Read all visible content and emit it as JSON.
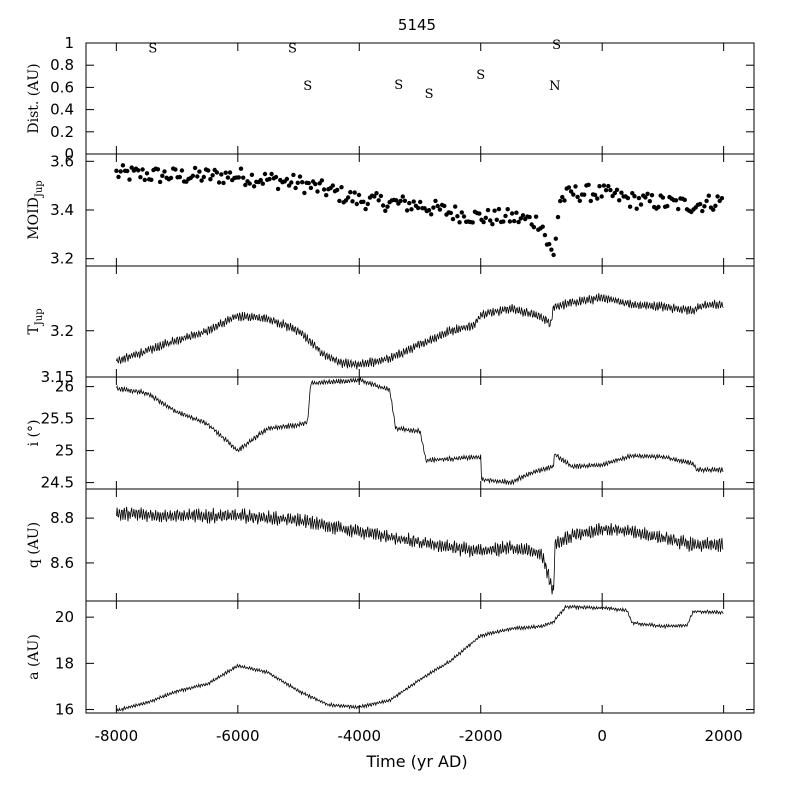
{
  "title": "5145",
  "xlabel": "Time (yr AD)",
  "xticks": [
    "-8000",
    "-6000",
    "-4000",
    "-2000",
    "0",
    "2000"
  ],
  "chart_data": [
    {
      "id": "dist",
      "type": "scatter",
      "ylabel": "Dist. (AU)",
      "xlim": [
        -8500,
        2500
      ],
      "ylim": [
        0,
        1
      ],
      "yticks": [
        "0",
        "0.2",
        "0.4",
        "0.6",
        "0.8",
        "1"
      ],
      "encounters": [
        {
          "x": -7400,
          "y": 0.96,
          "label": "S"
        },
        {
          "x": -5100,
          "y": 0.96,
          "label": "S"
        },
        {
          "x": -4850,
          "y": 0.62,
          "label": "S"
        },
        {
          "x": -3350,
          "y": 0.63,
          "label": "S"
        },
        {
          "x": -2850,
          "y": 0.55,
          "label": "S"
        },
        {
          "x": -2000,
          "y": 0.72,
          "label": "S"
        },
        {
          "x": -750,
          "y": 0.99,
          "label": "S"
        },
        {
          "x": -780,
          "y": 0.62,
          "label": "N"
        }
      ]
    },
    {
      "id": "moid",
      "type": "scatter",
      "ylabel_main": "MOID",
      "ylabel_sub": "Jup",
      "xlim": [
        -8500,
        2500
      ],
      "ylim": [
        3.17,
        3.63
      ],
      "yticks": [
        "3.2",
        "3.4",
        "3.6"
      ]
    },
    {
      "id": "tjup",
      "type": "line",
      "ylabel_main": "T",
      "ylabel_sub": "Jup",
      "xlim": [
        -8500,
        2500
      ],
      "ylim": [
        3.15,
        3.27
      ],
      "yticks": [
        "3.15",
        "3.2"
      ]
    },
    {
      "id": "incl",
      "type": "line",
      "ylabel": "i (°)",
      "xlim": [
        -8500,
        2500
      ],
      "ylim": [
        24.4,
        26.15
      ],
      "yticks": [
        "24.5",
        "25",
        "25.5",
        "26"
      ]
    },
    {
      "id": "q",
      "type": "line",
      "ylabel": "q (AU)",
      "xlim": [
        -8500,
        2500
      ],
      "ylim": [
        8.43,
        8.93
      ],
      "yticks": [
        "8.6",
        "8.8"
      ]
    },
    {
      "id": "a",
      "type": "line",
      "ylabel": "a (AU)",
      "xlim": [
        -8500,
        2500
      ],
      "ylim": [
        15.85,
        20.7
      ],
      "yticks": [
        "16",
        "18",
        "20"
      ]
    }
  ],
  "trend": {
    "moid": {
      "x": [
        -8000,
        -7000,
        -6000,
        -5000,
        -4500,
        -4000,
        -3500,
        -3000,
        -2500,
        -2000,
        -1500,
        -1000,
        -900,
        -800,
        -700,
        -500,
        0,
        500,
        1000,
        1500,
        2000
      ],
      "y": [
        3.55,
        3.54,
        3.54,
        3.51,
        3.48,
        3.44,
        3.43,
        3.42,
        3.39,
        3.37,
        3.37,
        3.35,
        3.26,
        3.21,
        3.44,
        3.47,
        3.47,
        3.44,
        3.43,
        3.42,
        3.44
      ],
      "amp": 0.035
    },
    "tjup": {
      "x": [
        -8000,
        -7500,
        -7000,
        -6500,
        -6000,
        -5500,
        -5000,
        -4600,
        -4300,
        -4000,
        -3500,
        -3000,
        -2500,
        -2100,
        -2000,
        -1500,
        -1000,
        -850,
        -800,
        -500,
        0,
        500,
        1000,
        1500,
        1700,
        2000
      ],
      "y": [
        3.167,
        3.178,
        3.19,
        3.2,
        3.216,
        3.213,
        3.2,
        3.175,
        3.165,
        3.163,
        3.17,
        3.185,
        3.2,
        3.206,
        3.218,
        3.224,
        3.215,
        3.208,
        3.226,
        3.23,
        3.236,
        3.228,
        3.226,
        3.222,
        3.228,
        3.228
      ],
      "amp": 0.004
    },
    "incl": {
      "x": [
        -8000,
        -7500,
        -7000,
        -6500,
        -6000,
        -5500,
        -5000,
        -4850,
        -4800,
        -4000,
        -3500,
        -3400,
        -3000,
        -2900,
        -2000,
        -1990,
        -1500,
        -1300,
        -1000,
        -800,
        -790,
        -500,
        0,
        500,
        1000,
        1500,
        1550,
        2000
      ],
      "y": [
        25.97,
        25.9,
        25.6,
        25.42,
        25.0,
        25.35,
        25.4,
        25.45,
        26.05,
        26.1,
        25.95,
        25.35,
        25.3,
        24.85,
        24.9,
        24.55,
        24.5,
        24.6,
        24.7,
        24.75,
        24.95,
        24.75,
        24.78,
        24.92,
        24.9,
        24.8,
        24.7,
        24.7
      ],
      "amp": 0.03
    },
    "q": {
      "x": [
        -8000,
        -7000,
        -6000,
        -5000,
        -4000,
        -3000,
        -2000,
        -1500,
        -1000,
        -800,
        -780,
        -500,
        0,
        500,
        1000,
        1500,
        2000
      ],
      "y": [
        8.82,
        8.81,
        8.81,
        8.79,
        8.74,
        8.69,
        8.65,
        8.67,
        8.64,
        8.47,
        8.68,
        8.72,
        8.75,
        8.74,
        8.71,
        8.68,
        8.68
      ],
      "amp": 0.025
    },
    "a": {
      "x": [
        -8000,
        -7500,
        -7000,
        -6500,
        -6000,
        -5500,
        -5000,
        -4500,
        -4000,
        -3500,
        -3000,
        -2500,
        -2000,
        -1500,
        -1000,
        -800,
        -600,
        0,
        400,
        500,
        1000,
        1400,
        1500,
        2000
      ],
      "y": [
        15.95,
        16.3,
        16.8,
        17.1,
        17.9,
        17.6,
        16.8,
        16.2,
        16.1,
        16.4,
        17.3,
        18.1,
        19.2,
        19.5,
        19.6,
        19.8,
        20.45,
        20.4,
        20.3,
        19.75,
        19.6,
        19.65,
        20.25,
        20.2
      ],
      "amp": 0.06
    }
  }
}
